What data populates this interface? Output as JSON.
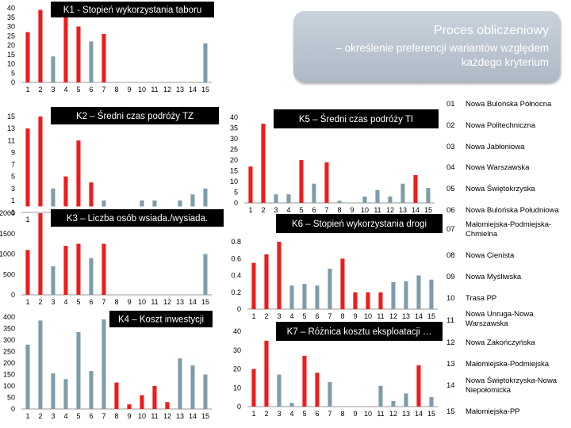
{
  "banner": {
    "title": "Proces obliczeniowy",
    "subtitle": "– określenie preferencji wariantów względem każdego kryterium"
  },
  "colors": {
    "red": "#ee1c1c",
    "gray": "#7f9cab",
    "title_box": "#000000",
    "title_text": "#ffffff"
  },
  "chart_data": [
    {
      "id": "k1",
      "type": "bar",
      "title": "K1 - Stopień wykorzystania taboru",
      "categories": [
        "1",
        "2",
        "3",
        "4",
        "5",
        "6",
        "7",
        "8",
        "9",
        "10",
        "11",
        "12",
        "13",
        "14",
        "15"
      ],
      "values": [
        27,
        39,
        14,
        37,
        30,
        22,
        26,
        0,
        0,
        0,
        0,
        0,
        0,
        0,
        21
      ],
      "colors": [
        "red",
        "red",
        "gray",
        "red",
        "red",
        "gray",
        "red",
        "gray",
        "gray",
        "gray",
        "gray",
        "gray",
        "gray",
        "gray",
        "gray"
      ],
      "ylim": [
        0,
        40
      ],
      "yticks": [
        0,
        5,
        10,
        15,
        20,
        25,
        30,
        35,
        40
      ],
      "xlabel": "",
      "ylabel": ""
    },
    {
      "id": "k2",
      "type": "bar",
      "title": "K2 – Średni czas podróży TZ",
      "categories": [
        "1",
        "2",
        "3",
        "4",
        "5",
        "6",
        "7",
        "8",
        "9",
        "10",
        "11",
        "12",
        "13",
        "14",
        "15"
      ],
      "values": [
        13,
        15,
        3,
        5,
        11,
        4,
        1,
        0,
        0,
        1,
        1,
        0,
        1,
        2,
        3
      ],
      "colors": [
        "red",
        "red",
        "gray",
        "red",
        "red",
        "red",
        "gray",
        "gray",
        "gray",
        "gray",
        "gray",
        "gray",
        "gray",
        "gray",
        "gray"
      ],
      "ylim": [
        -1,
        15
      ],
      "yticks": [
        -1,
        1,
        3,
        5,
        7,
        9,
        11,
        13,
        15
      ],
      "xlabel": "",
      "ylabel": ""
    },
    {
      "id": "k3",
      "type": "bar",
      "title": "K3 – Liczba osób wsiada./wysiada.",
      "categories": [
        "1",
        "2",
        "3",
        "4",
        "5",
        "6",
        "7",
        "8",
        "9",
        "10",
        "11",
        "12",
        "13",
        "14",
        "15"
      ],
      "values": [
        1100,
        2000,
        700,
        1200,
        1250,
        900,
        1250,
        0,
        0,
        0,
        0,
        0,
        0,
        0,
        1000
      ],
      "colors": [
        "red",
        "red",
        "gray",
        "red",
        "red",
        "gray",
        "red",
        "gray",
        "gray",
        "gray",
        "gray",
        "gray",
        "gray",
        "gray",
        "gray"
      ],
      "ylim": [
        0,
        2000
      ],
      "yticks": [
        0,
        500,
        1000,
        1500,
        2000
      ],
      "xlabel": "",
      "ylabel": ""
    },
    {
      "id": "k4",
      "type": "bar",
      "title": "K4 – Koszt inwestycji",
      "categories": [
        "1",
        "2",
        "3",
        "4",
        "5",
        "6",
        "7",
        "8",
        "9",
        "10",
        "11",
        "12",
        "13",
        "14",
        "15"
      ],
      "values": [
        280,
        385,
        155,
        130,
        335,
        165,
        390,
        115,
        20,
        60,
        100,
        30,
        220,
        190,
        150
      ],
      "colors": [
        "gray",
        "gray",
        "gray",
        "gray",
        "gray",
        "gray",
        "gray",
        "red",
        "red",
        "red",
        "red",
        "red",
        "gray",
        "gray",
        "gray"
      ],
      "ylim": [
        0,
        400
      ],
      "yticks": [
        0,
        50,
        100,
        150,
        200,
        250,
        300,
        350,
        400
      ],
      "xlabel": "",
      "ylabel": ""
    },
    {
      "id": "k5",
      "type": "bar",
      "title": "K5 – Średni czas podróży TI",
      "categories": [
        "1",
        "2",
        "3",
        "4",
        "5",
        "6",
        "7",
        "8",
        "9",
        "10",
        "11",
        "12",
        "13",
        "14",
        "15"
      ],
      "values": [
        17,
        37,
        4,
        4,
        20,
        9,
        19,
        1,
        0,
        3,
        6,
        3,
        9,
        13,
        7
      ],
      "colors": [
        "red",
        "red",
        "gray",
        "gray",
        "red",
        "gray",
        "red",
        "gray",
        "gray",
        "gray",
        "gray",
        "gray",
        "gray",
        "red",
        "gray"
      ],
      "ylim": [
        0,
        40
      ],
      "yticks": [
        0,
        5,
        10,
        15,
        20,
        25,
        30,
        35,
        40
      ],
      "xlabel": "",
      "ylabel": ""
    },
    {
      "id": "k6",
      "type": "bar",
      "title": "K6 – Stopień wykorzystania drogi",
      "categories": [
        "1",
        "2",
        "3",
        "4",
        "5",
        "6",
        "7",
        "8",
        "9",
        "10",
        "11",
        "12",
        "13",
        "14",
        "15"
      ],
      "values": [
        0.55,
        0.65,
        0.8,
        0.28,
        0.3,
        0.28,
        0.48,
        0.6,
        0.2,
        0.2,
        0.2,
        0.32,
        0.33,
        0.4,
        0.35
      ],
      "colors": [
        "red",
        "red",
        "red",
        "gray",
        "gray",
        "gray",
        "gray",
        "red",
        "red",
        "red",
        "red",
        "gray",
        "gray",
        "gray",
        "gray"
      ],
      "ylim": [
        0,
        0.8
      ],
      "yticks": [
        0,
        0.2,
        0.4,
        0.6,
        0.8
      ],
      "xlabel": "",
      "ylabel": ""
    },
    {
      "id": "k7",
      "type": "bar",
      "title": "K7 – Różnica kosztu eksploatacji …",
      "categories": [
        "1",
        "2",
        "3",
        "4",
        "5",
        "6",
        "7",
        "8",
        "9",
        "10",
        "11",
        "12",
        "13",
        "14",
        "15"
      ],
      "values": [
        20,
        35,
        17,
        2,
        27,
        18,
        13,
        0,
        0,
        0,
        11,
        3,
        7,
        22,
        5
      ],
      "colors": [
        "red",
        "red",
        "gray",
        "gray",
        "red",
        "red",
        "gray",
        "gray",
        "gray",
        "gray",
        "gray",
        "gray",
        "gray",
        "red",
        "gray"
      ],
      "ylim": [
        0,
        40
      ],
      "yticks": [
        0,
        10,
        20,
        30,
        40
      ],
      "xlabel": "",
      "ylabel": ""
    }
  ],
  "legend": [
    {
      "num": "01",
      "name": "Nowa Bulońska Północna"
    },
    {
      "num": "02",
      "name": "Nowa Politechniczna"
    },
    {
      "num": "03",
      "name": "Nowa Jabłoniowa"
    },
    {
      "num": "04",
      "name": "Nowa Warszawska"
    },
    {
      "num": "05",
      "name": "Nowa Świętokrzyska"
    },
    {
      "num": "06",
      "name": "Nowa Bulońska Południowa"
    },
    {
      "num": "07",
      "name": "Małomiejska-Podmiejska-Chmielna"
    },
    {
      "num": "08",
      "name": "Nowa Cienista"
    },
    {
      "num": "09",
      "name": "Nowa Myśliwska"
    },
    {
      "num": "10",
      "name": "Trasa PP"
    },
    {
      "num": "11",
      "name": "Nowa Unruga-Nowa Warszawska"
    },
    {
      "num": "12",
      "name": "Nowa Zakończyńska"
    },
    {
      "num": "13",
      "name": "Małomiejska-Podmiejska"
    },
    {
      "num": "14",
      "name": "Nowa Świętokrzyska-Nowa Niepołomicka"
    },
    {
      "num": "15",
      "name": "Małomiejska-PP"
    }
  ]
}
